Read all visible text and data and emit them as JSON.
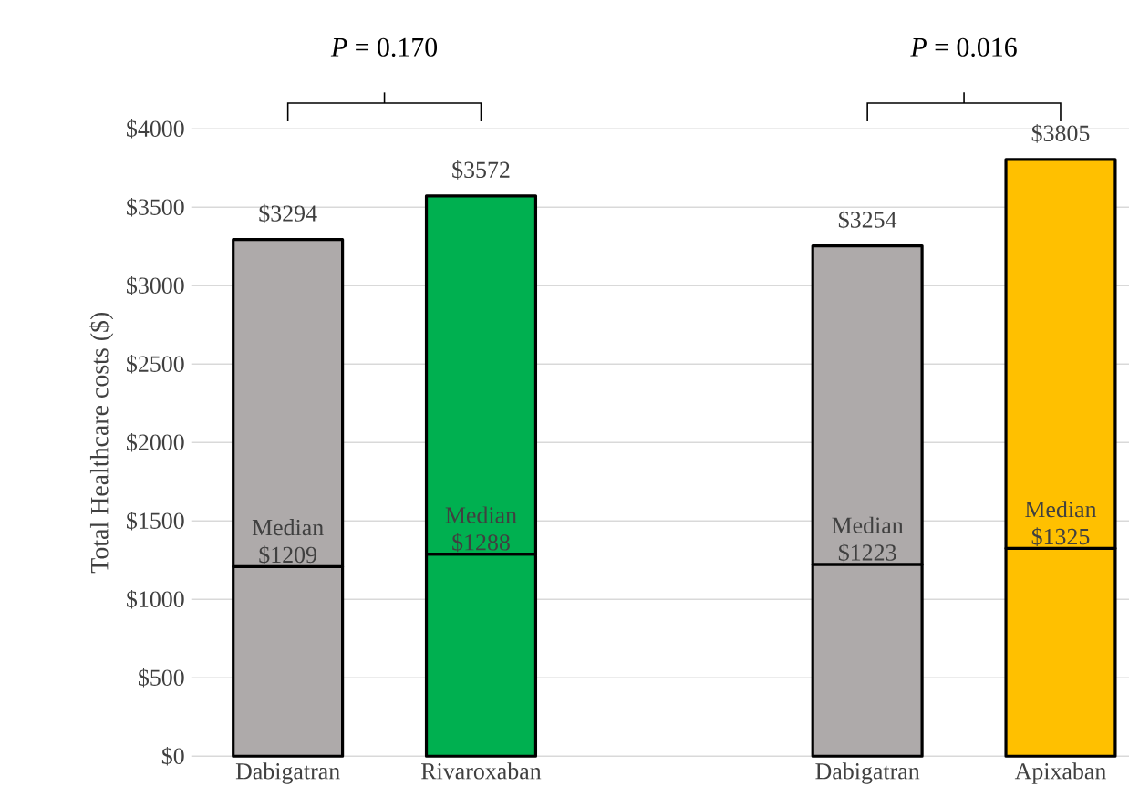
{
  "chart_data": {
    "type": "bar",
    "stacked": true,
    "ylabel": "Total Healthcare costs ($)",
    "categories": [
      "Dabigatran",
      "Rivaroxaban",
      null,
      "Dabigatran",
      "Apixaban"
    ],
    "series": [
      {
        "colors": [
          "#aeaaaa",
          "#00b050",
          null,
          "#aeaaaa",
          "#ffc000"
        ],
        "values": [
          1209,
          1288,
          null,
          1223,
          1325
        ],
        "value_labels": [
          "Median $1209",
          "Median $1288",
          null,
          "Median $1223",
          "Median $1325"
        ]
      },
      {
        "colors": [
          "#aeaaaa",
          "#00b050",
          null,
          "#aeaaaa",
          "#ffc000"
        ],
        "values": [
          2085,
          2284,
          null,
          2031,
          2480
        ]
      }
    ],
    "totals": [
      "$3294",
      "$3572",
      null,
      "$3254",
      "$3805"
    ],
    "ylim": [
      0,
      4000
    ],
    "yticks": [
      {
        "value": 0,
        "label": "$0"
      },
      {
        "value": 500,
        "label": "$500"
      },
      {
        "value": 1000,
        "label": "$1000"
      },
      {
        "value": 1500,
        "label": "$1500"
      },
      {
        "value": 2000,
        "label": "$2000"
      },
      {
        "value": 2500,
        "label": "$2500"
      },
      {
        "value": 3000,
        "label": "$3000"
      },
      {
        "value": 3500,
        "label": "$3500"
      },
      {
        "value": 4000,
        "label": "$4000"
      }
    ],
    "grid": "y",
    "annotations": [
      "*P* = 0.170",
      "*P* = 0.016"
    ]
  }
}
